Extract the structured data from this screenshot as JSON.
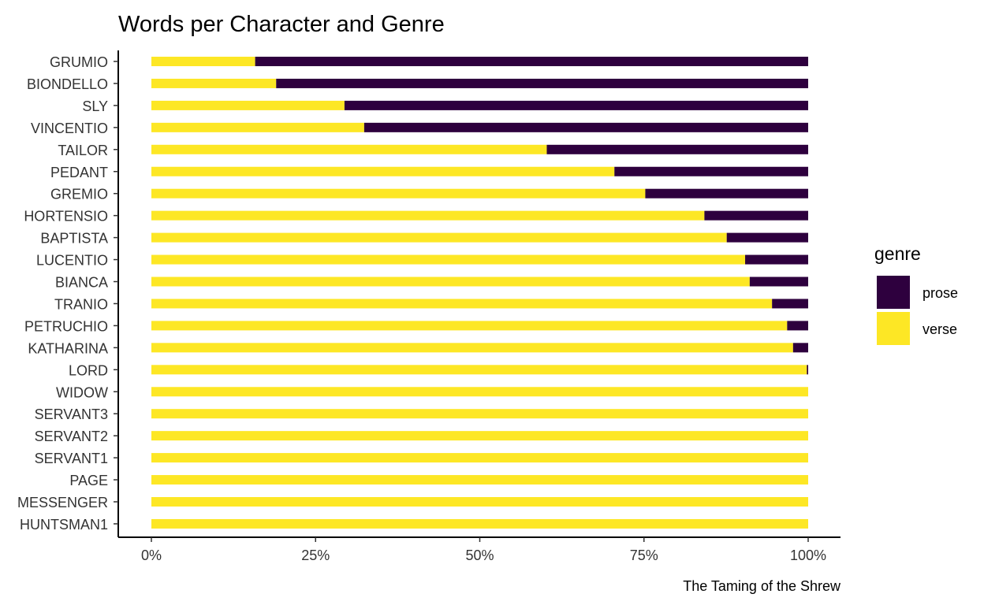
{
  "chart_data": {
    "type": "bar",
    "orientation": "horizontal",
    "stacked": true,
    "normalized": true,
    "title": "Words per Character and Genre",
    "caption": "The Taming of the Shrew",
    "xlabel": "",
    "ylabel": "",
    "xlim": [
      0,
      1
    ],
    "x_ticks": [
      0,
      0.25,
      0.5,
      0.75,
      1
    ],
    "x_tick_labels": [
      "0%",
      "25%",
      "50%",
      "75%",
      "100%"
    ],
    "grid": false,
    "legend": {
      "title": "genre",
      "position": "right",
      "entries": [
        {
          "name": "prose",
          "color": "#2e003e"
        },
        {
          "name": "verse",
          "color": "#fde725"
        }
      ]
    },
    "categories": [
      "GRUMIO",
      "BIONDELLO",
      "SLY",
      "VINCENTIO",
      "TAILOR",
      "PEDANT",
      "GREMIO",
      "HORTENSIO",
      "BAPTISTA",
      "LUCENTIO",
      "BIANCA",
      "TRANIO",
      "PETRUCHIO",
      "KATHARINA",
      "LORD",
      "WIDOW",
      "SERVANT3",
      "SERVANT2",
      "SERVANT1",
      "PAGE",
      "MESSENGER",
      "HUNTSMAN1"
    ],
    "series": [
      {
        "name": "verse",
        "values": [
          0.158,
          0.19,
          0.294,
          0.324,
          0.602,
          0.705,
          0.752,
          0.842,
          0.876,
          0.904,
          0.911,
          0.945,
          0.968,
          0.977,
          0.998,
          1,
          1,
          1,
          1,
          1,
          1,
          1
        ]
      },
      {
        "name": "prose",
        "values": [
          0.842,
          0.81,
          0.706,
          0.676,
          0.398,
          0.295,
          0.248,
          0.158,
          0.124,
          0.096,
          0.089,
          0.055,
          0.032,
          0.023,
          0.002,
          0,
          0,
          0,
          0,
          0,
          0,
          0
        ]
      }
    ]
  }
}
